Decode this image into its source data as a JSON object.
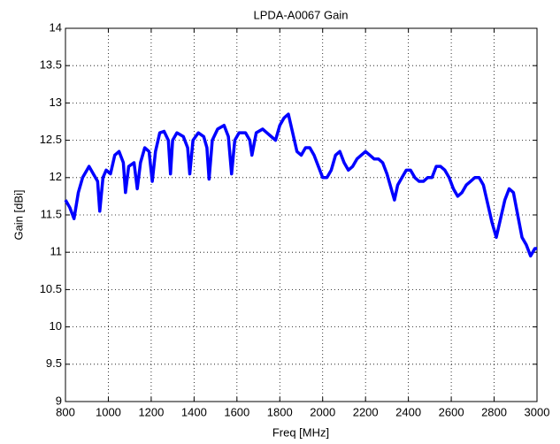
{
  "chart_data": {
    "type": "line",
    "title": "LPDA-A0067 Gain",
    "xlabel": "Freq [MHz]",
    "ylabel": "Gain [dBi]",
    "x": [
      800,
      820,
      840,
      860,
      880,
      900,
      910,
      930,
      950,
      960,
      975,
      990,
      1010,
      1030,
      1050,
      1070,
      1080,
      1095,
      1120,
      1135,
      1150,
      1170,
      1190,
      1205,
      1220,
      1240,
      1260,
      1280,
      1290,
      1300,
      1320,
      1350,
      1370,
      1380,
      1395,
      1420,
      1445,
      1460,
      1470,
      1485,
      1510,
      1540,
      1560,
      1575,
      1590,
      1610,
      1640,
      1660,
      1670,
      1690,
      1720,
      1740,
      1760,
      1780,
      1800,
      1820,
      1840,
      1860,
      1880,
      1900,
      1920,
      1940,
      1960,
      1980,
      2000,
      2020,
      2040,
      2060,
      2080,
      2100,
      2120,
      2140,
      2160,
      2180,
      2200,
      2220,
      2240,
      2260,
      2280,
      2300,
      2320,
      2335,
      2350,
      2370,
      2390,
      2410,
      2430,
      2450,
      2470,
      2490,
      2510,
      2530,
      2550,
      2570,
      2590,
      2610,
      2630,
      2650,
      2670,
      2690,
      2710,
      2730,
      2750,
      2770,
      2790,
      2810,
      2830,
      2850,
      2870,
      2890,
      2910,
      2930,
      2950,
      2970,
      2990,
      3000
    ],
    "series": [
      {
        "name": "Gain",
        "color": "#0000ff",
        "values": [
          11.7,
          11.6,
          11.45,
          11.8,
          12.0,
          12.1,
          12.15,
          12.05,
          11.95,
          11.55,
          12.0,
          12.1,
          12.05,
          12.3,
          12.35,
          12.2,
          11.8,
          12.15,
          12.2,
          11.85,
          12.2,
          12.4,
          12.35,
          11.95,
          12.35,
          12.6,
          12.62,
          12.5,
          12.05,
          12.5,
          12.6,
          12.55,
          12.4,
          12.05,
          12.5,
          12.6,
          12.55,
          12.4,
          11.98,
          12.5,
          12.65,
          12.7,
          12.55,
          12.05,
          12.5,
          12.6,
          12.6,
          12.5,
          12.3,
          12.6,
          12.65,
          12.6,
          12.55,
          12.5,
          12.7,
          12.8,
          12.85,
          12.6,
          12.35,
          12.3,
          12.4,
          12.4,
          12.3,
          12.15,
          12.0,
          12.0,
          12.1,
          12.3,
          12.35,
          12.2,
          12.1,
          12.15,
          12.25,
          12.3,
          12.35,
          12.3,
          12.25,
          12.25,
          12.2,
          12.05,
          11.85,
          11.7,
          11.9,
          12.0,
          12.1,
          12.1,
          12.0,
          11.95,
          11.95,
          12.0,
          12.0,
          12.15,
          12.15,
          12.1,
          12.0,
          11.85,
          11.75,
          11.8,
          11.9,
          11.95,
          12.0,
          12.0,
          11.9,
          11.65,
          11.4,
          11.2,
          11.45,
          11.7,
          11.85,
          11.8,
          11.5,
          11.2,
          11.1,
          10.95,
          11.05,
          11.05
        ]
      }
    ],
    "xlim": [
      800,
      3000
    ],
    "xticks": [
      800,
      1000,
      1200,
      1400,
      1600,
      1800,
      2000,
      2200,
      2400,
      2600,
      2800,
      3000
    ],
    "ylim": [
      9,
      14
    ],
    "yticks": [
      9,
      9.5,
      10,
      10.5,
      11,
      11.5,
      12,
      12.5,
      13,
      13.5,
      14
    ],
    "grid": true
  }
}
